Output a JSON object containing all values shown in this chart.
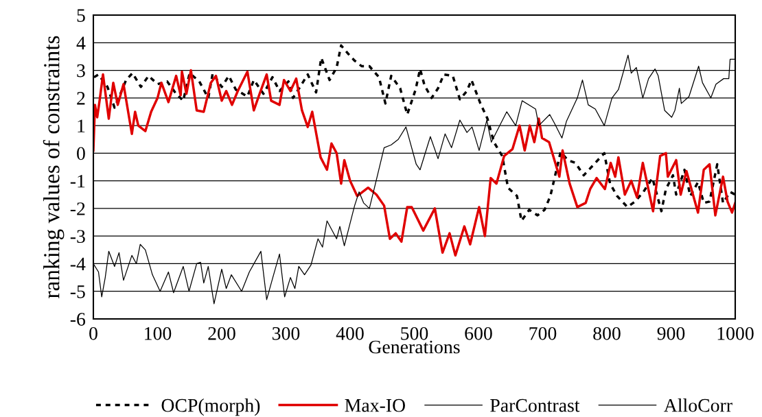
{
  "chart_data": {
    "type": "line",
    "xlabel": "Generations",
    "ylabel": "ranking values of constraints",
    "xlim": [
      0,
      1000
    ],
    "xticks": [
      0,
      100,
      200,
      300,
      400,
      500,
      600,
      700,
      800,
      900,
      1000
    ],
    "ylim": [
      -6,
      5
    ],
    "yticks": [
      -6,
      -5,
      -4,
      -3,
      -2,
      -1,
      0,
      1,
      2,
      3,
      4,
      5
    ],
    "grid": "y",
    "legend": "bottom",
    "marker": "none",
    "series": [
      {
        "name": "OCP(morph)",
        "color": "#000000",
        "line_style": "dashed",
        "x": [
          1,
          8,
          22,
          33,
          44,
          51,
          61,
          74,
          86,
          100,
          115,
          129,
          140,
          150,
          165,
          179,
          186,
          200,
          211,
          222,
          240,
          250,
          265,
          279,
          290,
          304,
          311,
          322,
          334,
          347,
          355,
          368,
          379,
          386,
          397,
          407,
          418,
          430,
          445,
          455,
          464,
          478,
          489,
          502,
          509,
          516,
          527,
          537,
          546,
          560,
          571,
          582,
          589,
          603,
          614,
          624,
          637,
          646,
          660,
          667,
          679,
          692,
          703,
          712,
          721,
          728,
          739,
          751,
          764,
          778,
          796,
          805,
          816,
          832,
          844,
          857,
          871,
          885,
          892,
          903,
          908,
          921,
          930,
          942,
          951,
          960,
          972,
          981,
          992,
          1000
        ],
        "values": [
          2.75,
          2.85,
          2.4,
          1.65,
          2.25,
          2.65,
          2.9,
          2.4,
          2.8,
          2.5,
          2.6,
          2.15,
          1.9,
          2.9,
          2.6,
          2.0,
          2.9,
          2.4,
          2.8,
          2.3,
          2.05,
          2.65,
          2.15,
          2.75,
          2.25,
          2.6,
          2.0,
          2.4,
          2.85,
          2.2,
          3.45,
          2.65,
          3.1,
          3.9,
          3.6,
          3.35,
          3.15,
          3.15,
          2.75,
          1.8,
          2.8,
          2.35,
          1.4,
          2.3,
          3.05,
          2.45,
          2.0,
          2.35,
          2.85,
          2.8,
          1.95,
          2.25,
          2.65,
          1.8,
          1.25,
          0.4,
          -0.1,
          -1.25,
          -1.55,
          -2.45,
          -2.05,
          -2.25,
          -2.05,
          -1.55,
          -0.65,
          0.05,
          -0.25,
          -0.35,
          -0.8,
          -0.45,
          0.0,
          -1.1,
          -1.55,
          -1.95,
          -1.75,
          -1.4,
          -0.9,
          -2.1,
          -1.3,
          -0.8,
          -1.5,
          -0.6,
          -1.55,
          -1.05,
          -1.8,
          -1.75,
          -0.4,
          -1.8,
          -1.4,
          -1.5
        ]
      },
      {
        "name": "Max-IO",
        "color": "#e00000",
        "x": [
          0,
          2.5,
          6,
          10,
          15,
          24,
          31,
          38,
          47,
          60,
          65,
          70,
          81,
          90,
          100,
          106,
          117,
          129,
          136,
          138,
          145,
          152,
          161,
          172,
          183,
          191,
          200,
          207,
          216,
          225,
          240,
          250,
          259,
          270,
          277,
          290,
          297,
          307,
          316,
          325,
          334,
          341,
          354,
          364,
          371,
          379,
          386,
          391,
          400,
          411,
          428,
          441,
          453,
          462,
          471,
          480,
          489,
          496,
          514,
          532,
          544,
          555,
          564,
          578,
          587,
          601,
          610,
          619,
          628,
          640,
          653,
          664,
          672,
          680,
          687,
          694,
          699,
          710,
          726,
          731,
          742,
          754,
          767,
          774,
          784,
          797,
          806,
          813,
          818,
          828,
          838,
          847,
          856,
          872,
          883,
          892,
          895,
          908,
          915,
          924,
          942,
          951,
          960,
          969,
          981,
          988,
          995,
          1000
        ],
        "values": [
          0.1,
          1.75,
          1.3,
          1.95,
          2.85,
          1.25,
          2.55,
          1.75,
          2.5,
          0.7,
          1.5,
          1.0,
          0.8,
          1.5,
          2.0,
          2.55,
          1.85,
          2.8,
          2.1,
          2.95,
          2.15,
          3.0,
          1.55,
          1.5,
          2.55,
          2.8,
          1.9,
          2.25,
          1.75,
          2.25,
          2.95,
          1.55,
          2.15,
          2.85,
          1.9,
          1.75,
          2.65,
          2.25,
          2.7,
          1.55,
          0.95,
          1.5,
          -0.15,
          -0.6,
          0.35,
          0.0,
          -1.1,
          -0.25,
          -1.0,
          -1.55,
          -1.25,
          -1.5,
          -1.9,
          -3.1,
          -2.9,
          -3.2,
          -1.95,
          -1.95,
          -2.8,
          -2.0,
          -3.6,
          -2.9,
          -3.7,
          -2.65,
          -3.3,
          -1.95,
          -3.0,
          -0.9,
          -1.1,
          -0.1,
          0.15,
          1.0,
          0.1,
          1.0,
          0.4,
          1.25,
          0.55,
          0.4,
          -0.85,
          0.1,
          -1.1,
          -1.95,
          -1.8,
          -1.3,
          -0.9,
          -1.3,
          -0.35,
          -0.85,
          -0.15,
          -1.5,
          -1.0,
          -1.6,
          -0.35,
          -2.1,
          -0.1,
          0.0,
          -0.85,
          -0.25,
          -1.5,
          -0.65,
          -2.15,
          -0.6,
          -0.4,
          -2.25,
          -0.85,
          -1.75,
          -2.15,
          -1.8
        ]
      },
      {
        "name": "ParContrast",
        "color": "#000000",
        "x": [
          0,
          8,
          13,
          18.5,
          24,
          33,
          40,
          47,
          60,
          67,
          73,
          81,
          92,
          104,
          117,
          125,
          140,
          149,
          161,
          167,
          172,
          179,
          188,
          200,
          207,
          215,
          231,
          243,
          261,
          270,
          279,
          290,
          298,
          307,
          314,
          320,
          329,
          339,
          350,
          357,
          364,
          379,
          384,
          391,
          407,
          414,
          421,
          430,
          439,
          453,
          464,
          475,
          487,
          503,
          509,
          525,
          537,
          548,
          558,
          571,
          582,
          590,
          601,
          613,
          620,
          644,
          658,
          668,
          689,
          694,
          711,
          718,
          730,
          737,
          754,
          762,
          771,
          782,
          796,
          808,
          818,
          833,
          838,
          846,
          856,
          865,
          875,
          880,
          890,
          901,
          906,
          913,
          916,
          928,
          943,
          949,
          962,
          970,
          982,
          990,
          992,
          999
        ],
        "values": [
          -4.0,
          -4.3,
          -5.2,
          -4.5,
          -3.55,
          -4.1,
          -3.6,
          -4.6,
          -3.7,
          -4.0,
          -3.3,
          -3.5,
          -4.4,
          -5.0,
          -4.3,
          -5.05,
          -4.1,
          -5.0,
          -4.0,
          -3.95,
          -4.7,
          -4.1,
          -5.45,
          -4.2,
          -4.9,
          -4.4,
          -5.0,
          -4.3,
          -3.55,
          -5.3,
          -4.55,
          -3.65,
          -5.2,
          -4.5,
          -4.9,
          -4.1,
          -4.4,
          -4.05,
          -3.1,
          -3.4,
          -2.45,
          -3.1,
          -2.65,
          -3.35,
          -1.9,
          -1.4,
          -1.8,
          -2.0,
          -1.15,
          0.2,
          0.3,
          0.5,
          0.95,
          -0.4,
          -0.6,
          0.6,
          -0.2,
          0.7,
          0.2,
          1.2,
          0.75,
          0.95,
          0.1,
          1.2,
          0.4,
          1.5,
          1.0,
          1.9,
          1.6,
          1.0,
          1.4,
          1.1,
          0.55,
          1.15,
          2.0,
          2.65,
          1.75,
          1.6,
          1.0,
          2.0,
          2.3,
          3.55,
          2.9,
          3.1,
          2.0,
          2.7,
          3.05,
          2.8,
          1.55,
          1.3,
          1.55,
          2.35,
          1.8,
          2.05,
          3.15,
          2.55,
          2.0,
          2.5,
          2.7,
          2.7,
          3.4,
          3.4
        ]
      },
      {
        "name": "AlloCorr",
        "color": "#000000"
      }
    ]
  }
}
